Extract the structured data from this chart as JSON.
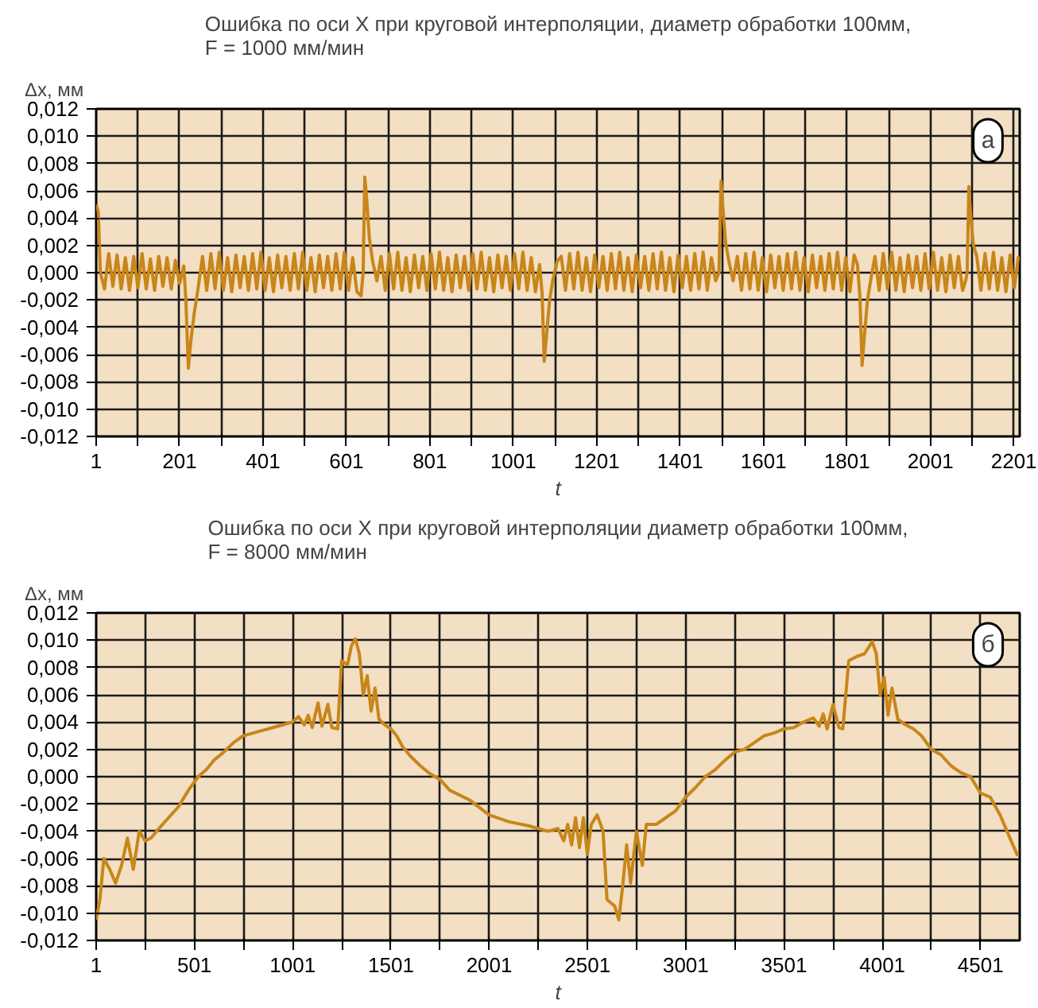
{
  "chart_data": [
    {
      "type": "line",
      "title": "Ошибка по оси X при круговой интерполяции, диаметр обработки 100мм,\nF = 1000 мм/мин",
      "ylabel": "Δx, мм",
      "xlabel": "t",
      "annotations": [
        "а"
      ],
      "grid": true,
      "marker": "none",
      "line_style": "solid",
      "xlim": [
        1,
        2215
      ],
      "ylim": [
        -0.012,
        0.012
      ],
      "xticks": [
        1,
        {
          "value": 101,
          "label": null
        },
        201,
        {
          "value": 301,
          "label": null
        },
        401,
        {
          "value": 501,
          "label": null
        },
        601,
        {
          "value": 701,
          "label": null
        },
        801,
        {
          "value": 901,
          "label": null
        },
        1001,
        {
          "value": 1101,
          "label": null
        },
        1201,
        {
          "value": 1301,
          "label": null
        },
        1401,
        {
          "value": 1501,
          "label": null
        },
        1601,
        {
          "value": 1701,
          "label": null
        },
        1801,
        {
          "value": 1901,
          "label": null
        },
        2001,
        {
          "value": 2101,
          "label": null
        },
        2201
      ],
      "yticks": [
        {
          "value": -0.012,
          "label": "-0,012"
        },
        {
          "value": -0.01,
          "label": "-0,010"
        },
        {
          "value": -0.008,
          "label": "-0,008"
        },
        {
          "value": -0.006,
          "label": "-0,006"
        },
        {
          "value": -0.004,
          "label": "-0,004"
        },
        {
          "value": -0.002,
          "label": "-0,002"
        },
        {
          "value": 0,
          "label": "0,000"
        },
        {
          "value": 0.002,
          "label": "0,002"
        },
        {
          "value": 0.004,
          "label": "0,004"
        },
        {
          "value": 0.006,
          "label": "0,006"
        },
        {
          "value": 0.008,
          "label": "0,008"
        },
        {
          "value": 0.01,
          "label": "0,010"
        },
        {
          "value": 0.012,
          "label": "0,012"
        }
      ],
      "series": [
        {
          "color": "#c8861a",
          "x": [
            1,
            6,
            11,
            21,
            31,
            41,
            51,
            61,
            71,
            81,
            91,
            101,
            111,
            121,
            131,
            141,
            151,
            161,
            171,
            181,
            191,
            201,
            211,
            216,
            222,
            228,
            236,
            246,
            256,
            266,
            276,
            286,
            296,
            306,
            316,
            326,
            336,
            346,
            356,
            366,
            376,
            386,
            396,
            406,
            416,
            426,
            436,
            446,
            456,
            466,
            476,
            486,
            496,
            506,
            516,
            526,
            536,
            546,
            556,
            566,
            576,
            586,
            596,
            606,
            616,
            626,
            636,
            641,
            645,
            650,
            656,
            664,
            674,
            684,
            694,
            704,
            714,
            724,
            734,
            744,
            754,
            764,
            774,
            784,
            794,
            804,
            814,
            824,
            834,
            844,
            854,
            864,
            874,
            884,
            894,
            904,
            914,
            924,
            934,
            944,
            954,
            964,
            974,
            984,
            994,
            1004,
            1014,
            1024,
            1034,
            1044,
            1054,
            1064,
            1070,
            1075,
            1081,
            1088,
            1096,
            1106,
            1116,
            1126,
            1136,
            1146,
            1156,
            1166,
            1176,
            1186,
            1196,
            1206,
            1216,
            1226,
            1236,
            1246,
            1256,
            1266,
            1276,
            1286,
            1296,
            1306,
            1316,
            1326,
            1336,
            1346,
            1356,
            1366,
            1376,
            1386,
            1396,
            1406,
            1416,
            1426,
            1436,
            1446,
            1456,
            1466,
            1476,
            1486,
            1494,
            1499,
            1504,
            1510,
            1518,
            1528,
            1538,
            1548,
            1558,
            1568,
            1578,
            1588,
            1598,
            1608,
            1618,
            1628,
            1638,
            1648,
            1658,
            1668,
            1678,
            1688,
            1698,
            1708,
            1718,
            1728,
            1738,
            1748,
            1758,
            1768,
            1778,
            1788,
            1798,
            1808,
            1818,
            1826,
            1832,
            1837,
            1843,
            1850,
            1858,
            1868,
            1878,
            1888,
            1898,
            1908,
            1918,
            1928,
            1938,
            1948,
            1958,
            1968,
            1978,
            1988,
            1998,
            2008,
            2018,
            2028,
            2038,
            2048,
            2058,
            2068,
            2078,
            2086,
            2089,
            2093,
            2098,
            2104,
            2112,
            2122,
            2132,
            2142,
            2152,
            2162,
            2172,
            2182,
            2192,
            2202,
            2212
          ],
          "values": [
            0.005,
            0.0045,
            0.0,
            -0.0012,
            0.0014,
            -0.001,
            0.0013,
            -0.0012,
            0.0011,
            -0.0013,
            0.0012,
            -0.0011,
            0.0014,
            -0.0012,
            0.001,
            -0.0013,
            0.0012,
            -0.001,
            0.0011,
            -0.0012,
            0.0009,
            -0.0008,
            0.0005,
            -0.002,
            -0.007,
            -0.005,
            -0.003,
            -0.001,
            0.0012,
            -0.0013,
            0.0014,
            -0.0012,
            0.0015,
            -0.0013,
            0.0011,
            -0.0014,
            0.0013,
            -0.0011,
            0.0012,
            -0.0013,
            0.0014,
            -0.0012,
            0.0015,
            -0.0013,
            0.0011,
            -0.0014,
            0.0013,
            -0.0011,
            0.0012,
            -0.0013,
            0.0014,
            -0.0012,
            0.0015,
            -0.0013,
            0.0011,
            -0.0014,
            0.0013,
            -0.0011,
            0.0012,
            -0.0013,
            0.0014,
            -0.0012,
            0.0015,
            -0.0013,
            0.0011,
            -0.0014,
            -0.0017,
            0.0,
            0.007,
            0.0052,
            0.0025,
            0.0008,
            -0.0006,
            0.0012,
            -0.0013,
            0.0014,
            -0.0012,
            0.0015,
            -0.0013,
            0.0011,
            -0.0014,
            0.0013,
            -0.0011,
            0.0012,
            -0.0013,
            0.0014,
            -0.0012,
            0.0015,
            -0.0013,
            0.0011,
            -0.0014,
            0.0013,
            -0.0011,
            0.0012,
            -0.0013,
            0.0014,
            -0.0012,
            0.0015,
            -0.0013,
            0.0011,
            -0.0014,
            0.0013,
            -0.0011,
            0.0012,
            -0.0013,
            0.0014,
            -0.0012,
            0.0015,
            -0.0013,
            0.0011,
            -0.0014,
            0.0006,
            -0.0015,
            -0.0065,
            -0.0045,
            -0.002,
            -0.0005,
            0.0008,
            0.0012,
            -0.0013,
            0.0014,
            -0.0012,
            0.0015,
            -0.0013,
            0.0011,
            -0.0014,
            0.0013,
            -0.0011,
            0.0012,
            -0.0013,
            0.0014,
            -0.0012,
            0.0015,
            -0.0013,
            0.0011,
            -0.0014,
            0.0013,
            -0.0011,
            0.0012,
            -0.0013,
            0.0014,
            -0.0012,
            0.0015,
            -0.0013,
            0.0011,
            -0.0014,
            0.0013,
            -0.0011,
            0.0012,
            -0.0013,
            0.0014,
            -0.0012,
            0.0015,
            -0.0013,
            0.0011,
            -0.0006,
            0.0,
            0.0067,
            0.0045,
            0.0022,
            0.0008,
            -0.0006,
            0.0012,
            -0.0013,
            0.0014,
            -0.0012,
            0.0015,
            -0.0013,
            0.0011,
            -0.0014,
            0.0013,
            -0.0011,
            0.0012,
            -0.0013,
            0.0014,
            -0.0012,
            0.0015,
            -0.0013,
            0.0011,
            -0.0014,
            0.0013,
            -0.0011,
            0.0012,
            -0.0013,
            0.0014,
            -0.0012,
            0.0015,
            -0.0013,
            0.0011,
            -0.0014,
            0.0013,
            0.0006,
            -0.0018,
            -0.0068,
            -0.0045,
            -0.002,
            -0.0005,
            0.0012,
            -0.0013,
            0.0014,
            -0.0012,
            0.0015,
            -0.0013,
            0.0011,
            -0.0014,
            0.0013,
            -0.0011,
            0.0012,
            -0.0013,
            0.0014,
            -0.0012,
            0.0015,
            -0.0013,
            0.0011,
            -0.0014,
            0.0013,
            -0.0011,
            0.0012,
            -0.0013,
            -0.0005,
            0.0,
            0.0063,
            0.004,
            0.002,
            0.0012,
            -0.0013,
            0.0014,
            -0.0012,
            0.0015,
            -0.0013,
            0.0011,
            -0.0014,
            0.0013,
            -0.0011,
            0.0012
          ]
        }
      ]
    },
    {
      "type": "line",
      "title": "Ошибка по оси X при круговой интерполяции диаметр обработки 100мм,\nF = 8000 мм/мин",
      "ylabel": "Δx, мм",
      "xlabel": "t",
      "annotations": [
        "б"
      ],
      "grid": true,
      "marker": "none",
      "line_style": "solid",
      "xlim": [
        1,
        4700
      ],
      "ylim": [
        -0.012,
        0.012
      ],
      "xticks": [
        1,
        {
          "value": 251,
          "label": null
        },
        501,
        {
          "value": 751,
          "label": null
        },
        1001,
        {
          "value": 1251,
          "label": null
        },
        1501,
        {
          "value": 1751,
          "label": null
        },
        2001,
        {
          "value": 2251,
          "label": null
        },
        2501,
        {
          "value": 2751,
          "label": null
        },
        3001,
        {
          "value": 3251,
          "label": null
        },
        3501,
        {
          "value": 3751,
          "label": null
        },
        4001,
        {
          "value": 4251,
          "label": null
        },
        4501
      ],
      "yticks": [
        {
          "value": -0.012,
          "label": "-0,012"
        },
        {
          "value": -0.01,
          "label": "-0,010"
        },
        {
          "value": -0.008,
          "label": "-0,008"
        },
        {
          "value": -0.006,
          "label": "-0,006"
        },
        {
          "value": -0.004,
          "label": "-0,004"
        },
        {
          "value": -0.002,
          "label": "-0,002"
        },
        {
          "value": 0,
          "label": "0,000"
        },
        {
          "value": 0.002,
          "label": "0,002"
        },
        {
          "value": 0.004,
          "label": "0,004"
        },
        {
          "value": 0.006,
          "label": "0,006"
        },
        {
          "value": 0.008,
          "label": "0,008"
        },
        {
          "value": 0.01,
          "label": "0,010"
        },
        {
          "value": 0.012,
          "label": "0,012"
        }
      ],
      "series": [
        {
          "color": "#c8861a",
          "x": [
            1,
            20,
            40,
            70,
            100,
            130,
            160,
            190,
            220,
            250,
            280,
            320,
            370,
            420,
            470,
            520,
            560,
            600,
            650,
            700,
            750,
            800,
            850,
            900,
            950,
            1000,
            1030,
            1060,
            1080,
            1100,
            1130,
            1150,
            1180,
            1200,
            1230,
            1250,
            1280,
            1300,
            1320,
            1340,
            1360,
            1380,
            1400,
            1420,
            1440,
            1470,
            1500,
            1530,
            1560,
            1600,
            1650,
            1700,
            1750,
            1800,
            1900,
            2000,
            2100,
            2200,
            2300,
            2350,
            2380,
            2400,
            2420,
            2440,
            2460,
            2480,
            2500,
            2520,
            2550,
            2580,
            2600,
            2640,
            2660,
            2680,
            2700,
            2720,
            2750,
            2780,
            2800,
            2850,
            2900,
            2950,
            3000,
            3050,
            3100,
            3150,
            3200,
            3250,
            3300,
            3350,
            3400,
            3450,
            3500,
            3550,
            3600,
            3650,
            3680,
            3700,
            3720,
            3750,
            3780,
            3800,
            3830,
            3870,
            3910,
            3950,
            3970,
            3990,
            4010,
            4030,
            4050,
            4080,
            4120,
            4160,
            4200,
            4250,
            4300,
            4350,
            4400,
            4450,
            4500,
            4550,
            4600,
            4650,
            4690
          ],
          "values": [
            -0.0105,
            -0.009,
            -0.006,
            -0.0068,
            -0.0078,
            -0.0065,
            -0.0045,
            -0.0068,
            -0.004,
            -0.0047,
            -0.0045,
            -0.0038,
            -0.003,
            -0.0022,
            -0.001,
            0.0,
            0.0005,
            0.0012,
            0.0018,
            0.0025,
            0.003,
            0.0032,
            0.0034,
            0.0036,
            0.0038,
            0.004,
            0.0044,
            0.0038,
            0.0045,
            0.0036,
            0.0054,
            0.0037,
            0.0053,
            0.0036,
            0.0035,
            0.0085,
            0.0082,
            0.0096,
            0.0101,
            0.009,
            0.006,
            0.0074,
            0.0048,
            0.0065,
            0.0042,
            0.0038,
            0.0035,
            0.003,
            0.0022,
            0.0015,
            0.0008,
            0.0002,
            -0.0002,
            -0.001,
            -0.0017,
            -0.0028,
            -0.0033,
            -0.0036,
            -0.004,
            -0.0038,
            -0.0047,
            -0.0035,
            -0.005,
            -0.003,
            -0.0052,
            -0.003,
            -0.0057,
            -0.0035,
            -0.0028,
            -0.004,
            -0.009,
            -0.0095,
            -0.0105,
            -0.008,
            -0.005,
            -0.0078,
            -0.004,
            -0.0065,
            -0.0035,
            -0.0035,
            -0.003,
            -0.0025,
            -0.0015,
            -0.0008,
            0.0,
            0.0005,
            0.0012,
            0.0018,
            0.002,
            0.0025,
            0.003,
            0.0032,
            0.0035,
            0.0036,
            0.004,
            0.0043,
            0.0037,
            0.0046,
            0.0035,
            0.0053,
            0.0036,
            0.0035,
            0.0085,
            0.0088,
            0.009,
            0.0099,
            0.009,
            0.006,
            0.0073,
            0.0045,
            0.0065,
            0.0042,
            0.0038,
            0.0035,
            0.003,
            0.002,
            0.0016,
            0.0008,
            0.0003,
            0.0,
            -0.0012,
            -0.0015,
            -0.0028,
            -0.0045,
            -0.0058
          ]
        }
      ]
    }
  ]
}
